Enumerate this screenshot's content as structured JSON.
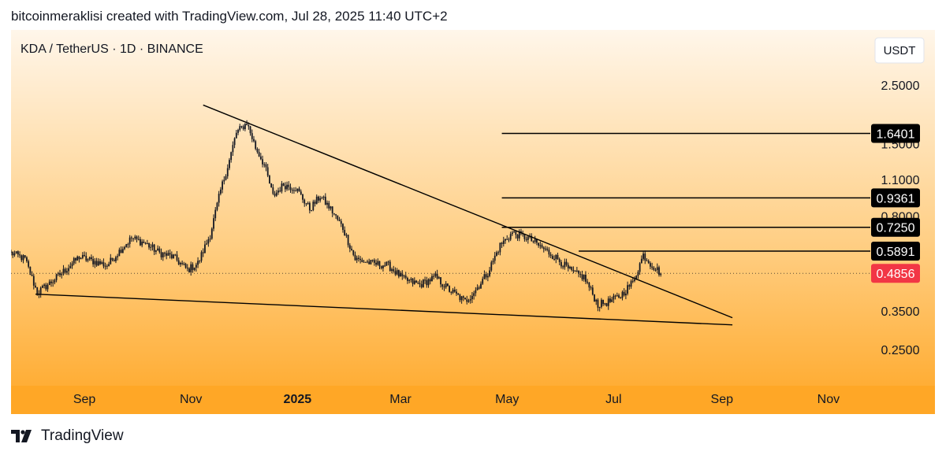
{
  "header": {
    "caption": "bitcoinmeraklisi created with TradingView.com, Jul 28, 2025 11:40 UTC+2"
  },
  "footer": {
    "brand": "TradingView",
    "logo_icon": "tradingview-logo-icon"
  },
  "chart_data": {
    "type": "candlestick",
    "title": "KDA / TetherUS · 1D · BINANCE",
    "currency_label": "USDT",
    "scale": "log",
    "y_ticks": [
      "2.5000",
      "1.5000",
      "1.1000",
      "0.8000",
      "0.3500",
      "0.2500"
    ],
    "x_ticks": [
      "Sep",
      "Nov",
      "2025",
      "Mar",
      "May",
      "Jul",
      "Sep",
      "Nov"
    ],
    "last_price": "0.4856",
    "colors": {
      "bg_top": "#fff6ea",
      "bg_bottom": "#ffa726",
      "candles": "#131722",
      "last_price": "#f23645",
      "label_bg": "#000000"
    },
    "price_levels": [
      {
        "label": "1.6401",
        "value": 1.6401,
        "from": "2025-04-28",
        "to": "2025-11-10"
      },
      {
        "label": "0.9361",
        "value": 0.9361,
        "from": "2025-04-28",
        "to": "2025-11-10"
      },
      {
        "label": "0.7250",
        "value": 0.725,
        "from": "2025-04-28",
        "to": "2025-11-10"
      },
      {
        "label": "0.5891",
        "value": 0.5891,
        "from": "2025-06-11",
        "to": "2025-11-10"
      }
    ],
    "trendlines": [
      {
        "name": "upper",
        "from": [
          "2024-11-08",
          2.1
        ],
        "to": [
          "2025-09-07",
          0.33
        ]
      },
      {
        "name": "lower",
        "from": [
          "2024-08-04",
          0.405
        ],
        "to": [
          "2025-09-07",
          0.31
        ]
      }
    ],
    "price_path": [
      [
        "2024-07-21",
        0.58
      ],
      [
        "2024-07-29",
        0.55
      ],
      [
        "2024-08-05",
        0.41
      ],
      [
        "2024-08-13",
        0.45
      ],
      [
        "2024-08-21",
        0.5
      ],
      [
        "2024-08-29",
        0.56
      ],
      [
        "2024-09-06",
        0.54
      ],
      [
        "2024-09-14",
        0.52
      ],
      [
        "2024-09-22",
        0.6
      ],
      [
        "2024-09-28",
        0.66
      ],
      [
        "2024-10-06",
        0.63
      ],
      [
        "2024-10-14",
        0.58
      ],
      [
        "2024-10-22",
        0.56
      ],
      [
        "2024-10-30",
        0.5
      ],
      [
        "2024-11-05",
        0.53
      ],
      [
        "2024-11-12",
        0.68
      ],
      [
        "2024-11-18",
        1.0
      ],
      [
        "2024-11-23",
        1.3
      ],
      [
        "2024-11-27",
        1.65
      ],
      [
        "2024-12-03",
        1.8
      ],
      [
        "2024-12-08",
        1.45
      ],
      [
        "2024-12-13",
        1.25
      ],
      [
        "2024-12-18",
        0.95
      ],
      [
        "2024-12-24",
        1.05
      ],
      [
        "2024-12-31",
        1.02
      ],
      [
        "2025-01-08",
        0.85
      ],
      [
        "2025-01-14",
        0.95
      ],
      [
        "2025-01-20",
        0.85
      ],
      [
        "2025-01-27",
        0.72
      ],
      [
        "2025-02-03",
        0.55
      ],
      [
        "2025-02-12",
        0.53
      ],
      [
        "2025-02-22",
        0.52
      ],
      [
        "2025-03-03",
        0.46
      ],
      [
        "2025-03-12",
        0.44
      ],
      [
        "2025-03-21",
        0.47
      ],
      [
        "2025-03-29",
        0.42
      ],
      [
        "2025-04-07",
        0.38
      ],
      [
        "2025-04-13",
        0.42
      ],
      [
        "2025-04-20",
        0.49
      ],
      [
        "2025-04-27",
        0.62
      ],
      [
        "2025-05-04",
        0.69
      ],
      [
        "2025-05-13",
        0.66
      ],
      [
        "2025-05-22",
        0.6
      ],
      [
        "2025-05-30",
        0.55
      ],
      [
        "2025-06-07",
        0.49
      ],
      [
        "2025-06-14",
        0.47
      ],
      [
        "2025-06-22",
        0.37
      ],
      [
        "2025-06-29",
        0.38
      ],
      [
        "2025-07-05",
        0.4
      ],
      [
        "2025-07-12",
        0.45
      ],
      [
        "2025-07-18",
        0.57
      ],
      [
        "2025-07-22",
        0.53
      ],
      [
        "2025-07-28",
        0.4856
      ]
    ]
  }
}
